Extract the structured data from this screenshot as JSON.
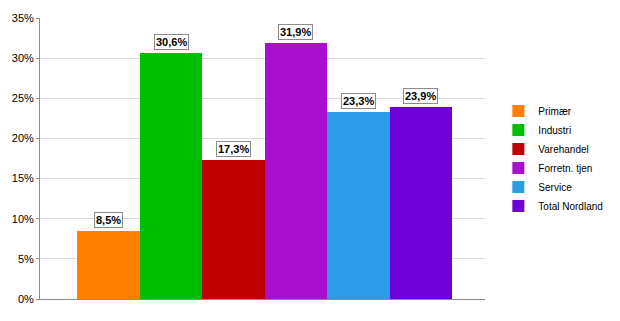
{
  "chart_data": {
    "type": "bar",
    "categories": [
      "Primær",
      "Industri",
      "Varehandel",
      "Forretn. tjen",
      "Service",
      "Total Nordland"
    ],
    "values": [
      8.5,
      30.6,
      17.3,
      31.9,
      23.3,
      23.9
    ],
    "value_labels": [
      "8,5%",
      "30,6%",
      "17,3%",
      "31,9%",
      "23,3%",
      "23,9%"
    ],
    "colors": [
      "#ff8000",
      "#00bf00",
      "#bf0000",
      "#a90fcf",
      "#2e9be8",
      "#7000d8"
    ],
    "ylim": [
      0,
      35
    ],
    "yticks": [
      {
        "value": 0,
        "label": "0%"
      },
      {
        "value": 5,
        "label": "5%"
      },
      {
        "value": 10,
        "label": "10%"
      },
      {
        "value": 15,
        "label": "15%"
      },
      {
        "value": 20,
        "label": "20%"
      },
      {
        "value": 25,
        "label": "25%"
      },
      {
        "value": 30,
        "label": "30%"
      },
      {
        "value": 35,
        "label": "35%"
      }
    ],
    "grid": true,
    "legend": "right",
    "data_labels": true,
    "tick_labels": "y"
  }
}
